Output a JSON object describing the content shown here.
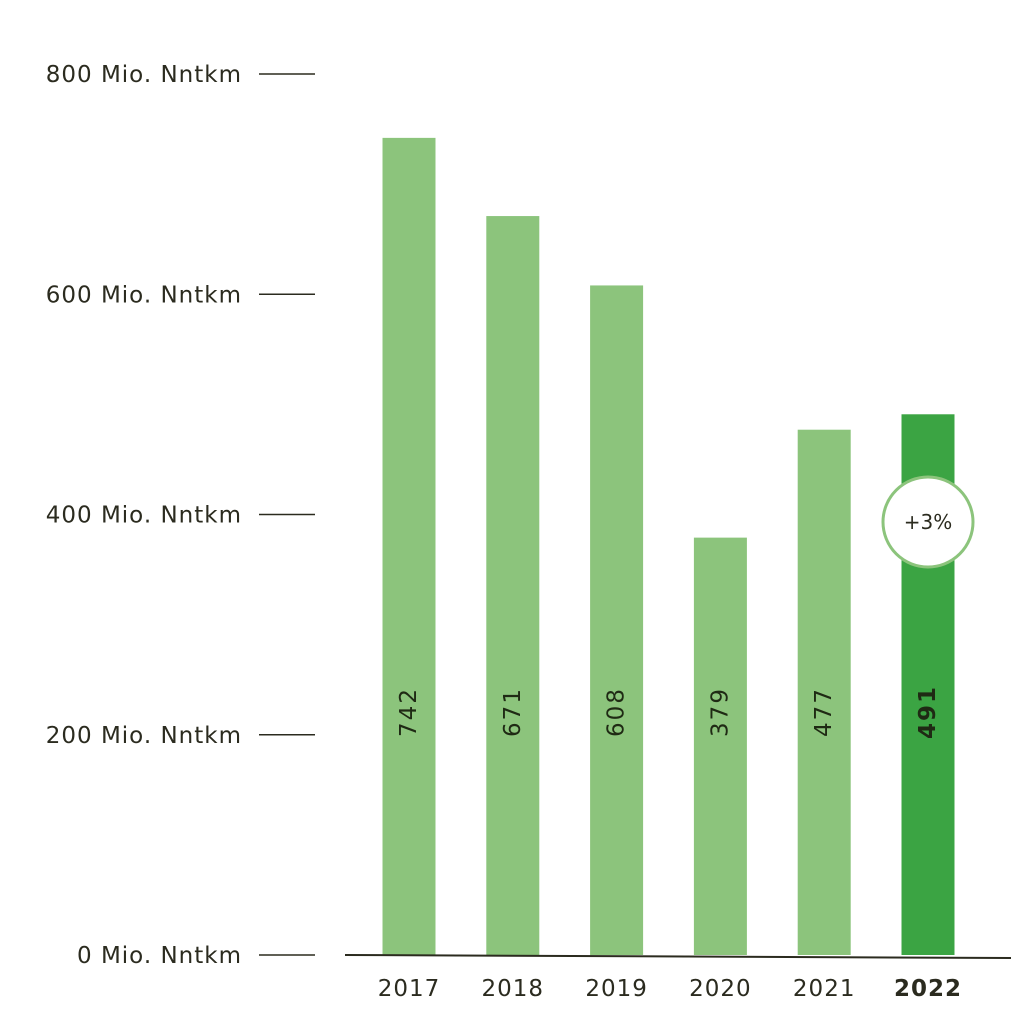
{
  "chart_data": {
    "type": "bar",
    "categories": [
      "2017",
      "2018",
      "2019",
      "2020",
      "2021",
      "2022"
    ],
    "values": [
      742,
      671,
      608,
      379,
      477,
      491
    ],
    "value_labels": [
      "742",
      "671",
      "608",
      "379",
      "477",
      "491"
    ],
    "highlight_category": "2022",
    "y_ticks": [
      {
        "value": 0,
        "label": "0 Mio. Nntkm"
      },
      {
        "value": 200,
        "label": "200 Mio. Nntkm"
      },
      {
        "value": 400,
        "label": "400 Mio. Nntkm"
      },
      {
        "value": 600,
        "label": "600 Mio. Nntkm"
      },
      {
        "value": 800,
        "label": "800 Mio. Nntkm"
      }
    ],
    "ylim": [
      0,
      800
    ],
    "grid": false,
    "title": "",
    "xlabel": "",
    "ylabel": "",
    "annotation": {
      "category": "2022",
      "text": "+3%"
    },
    "colors": {
      "bar": "#8cc47c",
      "bar_highlight": "#3ba443",
      "axis": "#2b2b1f",
      "badge_border": "#8cc47c"
    }
  }
}
